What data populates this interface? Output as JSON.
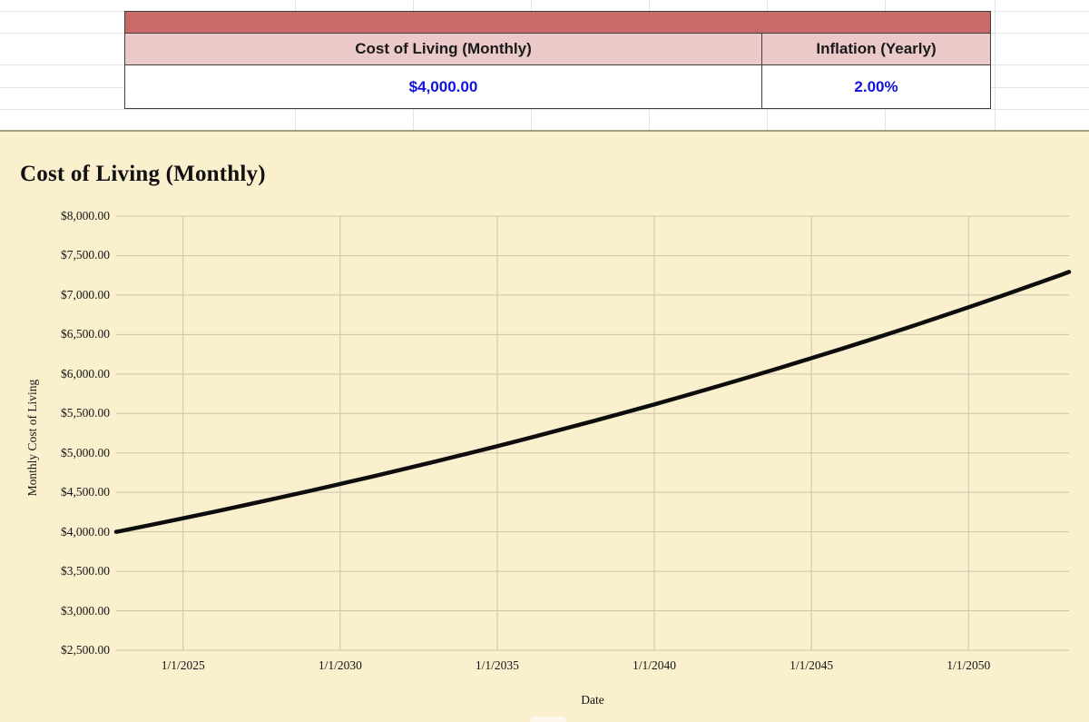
{
  "colors": {
    "table_band_red": "#C96A6A",
    "table_header_pink": "#EBC9C9",
    "table_border": "#3F3F3F",
    "value_blue": "#1212DD",
    "chart_background": "#FAF0CE",
    "chart_gridline": "#CBC3AC",
    "series_line": "#0D0D0D"
  },
  "spreadsheet": {
    "table": {
      "columns": [
        {
          "header": "Cost of Living (Monthly)",
          "value": "$4,000.00"
        },
        {
          "header": "Inflation (Yearly)",
          "value": "2.00%"
        }
      ]
    }
  },
  "chart_data": {
    "type": "line",
    "title": "Cost of Living (Monthly)",
    "xlabel": "Date",
    "ylabel": "Monthly Cost of Living",
    "xlim": [
      2022.87,
      2053.2
    ],
    "ylim": [
      2500,
      8000
    ],
    "grid": true,
    "legend": "none",
    "x_ticks": [
      {
        "value": 2025,
        "label": "1/1/2025"
      },
      {
        "value": 2030,
        "label": "1/1/2030"
      },
      {
        "value": 2035,
        "label": "1/1/2035"
      },
      {
        "value": 2040,
        "label": "1/1/2040"
      },
      {
        "value": 2045,
        "label": "1/1/2045"
      },
      {
        "value": 2050,
        "label": "1/1/2050"
      }
    ],
    "y_ticks": [
      {
        "value": 8000,
        "label": "$8,000.00"
      },
      {
        "value": 7500,
        "label": "$7,500.00"
      },
      {
        "value": 7000,
        "label": "$7,000.00"
      },
      {
        "value": 6500,
        "label": "$6,500.00"
      },
      {
        "value": 6000,
        "label": "$6,000.00"
      },
      {
        "value": 5500,
        "label": "$5,500.00"
      },
      {
        "value": 5000,
        "label": "$5,000.00"
      },
      {
        "value": 4500,
        "label": "$4,500.00"
      },
      {
        "value": 4000,
        "label": "$4,000.00"
      },
      {
        "value": 3500,
        "label": "$3,500.00"
      },
      {
        "value": 3000,
        "label": "$3,000.00"
      },
      {
        "value": 2500,
        "label": "$2,500.00"
      }
    ],
    "series": [
      {
        "name": "Cost of Living (Monthly)",
        "start_value": 4000,
        "yearly_growth_pct": 2.0,
        "points": [
          [
            2022.87,
            4000
          ],
          [
            2023,
            4010
          ],
          [
            2024,
            4090
          ],
          [
            2025,
            4172
          ],
          [
            2026,
            4256
          ],
          [
            2027,
            4341
          ],
          [
            2028,
            4428
          ],
          [
            2029,
            4516
          ],
          [
            2030,
            4607
          ],
          [
            2031,
            4699
          ],
          [
            2032,
            4793
          ],
          [
            2033,
            4889
          ],
          [
            2034,
            4986
          ],
          [
            2035,
            5086
          ],
          [
            2036,
            5188
          ],
          [
            2037,
            5292
          ],
          [
            2038,
            5397
          ],
          [
            2039,
            5505
          ],
          [
            2040,
            5615
          ],
          [
            2041,
            5728
          ],
          [
            2042,
            5842
          ],
          [
            2043,
            5959
          ],
          [
            2044,
            6078
          ],
          [
            2045,
            6200
          ],
          [
            2046,
            6324
          ],
          [
            2047,
            6450
          ],
          [
            2048,
            6579
          ],
          [
            2049,
            6711
          ],
          [
            2050,
            6845
          ],
          [
            2051,
            6982
          ],
          [
            2052,
            7122
          ],
          [
            2053,
            7264
          ],
          [
            2053.2,
            7293
          ]
        ]
      }
    ]
  }
}
